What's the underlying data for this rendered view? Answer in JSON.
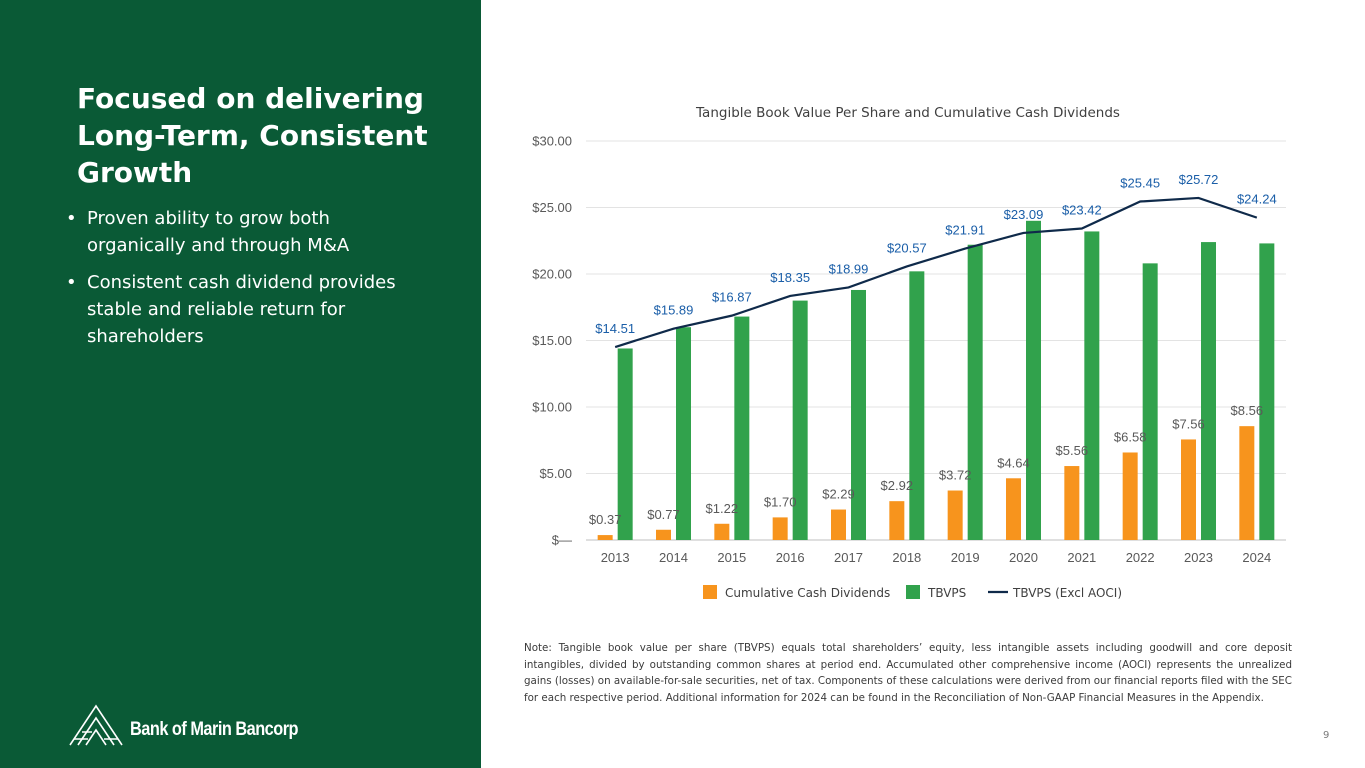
{
  "slide": {
    "title": "Focused on delivering Long-Term, Consistent Growth",
    "bullets": [
      "Proven ability to grow both organically and through M&A",
      "Consistent cash dividend provides stable and reliable return for shareholders"
    ],
    "bullet_symbol": "•",
    "logo_text": "Bank of Marin Bancorp",
    "note": "Note: Tangible book value per share (TBVPS) equals total shareholders’ equity, less intangible assets including goodwill and core deposit intangibles, divided by outstanding common shares at period end. Accumulated other comprehensive income (AOCI) represents the unrealized gains (losses) on available-for-sale securities, net of tax. Components of these calculations were derived from our financial reports filed with the SEC for each respective period. Additional information for 2024 can be found in the Reconciliation of Non-GAAP Financial Measures in the Appendix.",
    "page_number": "9"
  },
  "colors": {
    "panel": "#0a5a36",
    "dividends": "#f7941d",
    "tbvps": "#31a24c",
    "line": "#0f2a4a",
    "line_label": "#1a5ea8",
    "bar_label": "#595959",
    "axis_text": "#595959",
    "grid": "#e3e3e3"
  },
  "chart_data": {
    "type": "bar",
    "title": "Tangible Book Value Per Share and Cumulative Cash Dividends",
    "categories": [
      "2013",
      "2014",
      "2015",
      "2016",
      "2017",
      "2018",
      "2019",
      "2020",
      "2021",
      "2022",
      "2023",
      "2024"
    ],
    "series": [
      {
        "name": "Cumulative Cash Dividends",
        "type": "bar",
        "values": [
          0.37,
          0.77,
          1.22,
          1.7,
          2.29,
          2.92,
          3.72,
          4.64,
          5.56,
          6.58,
          7.56,
          8.56
        ],
        "labels": [
          "$0.37",
          "$0.77",
          "$1.22",
          "$1.70",
          "$2.29",
          "$2.92",
          "$3.72",
          "$4.64",
          "$5.56",
          "$6.58",
          "$7.56",
          "$8.56"
        ]
      },
      {
        "name": "TBVPS",
        "type": "bar",
        "values": [
          14.4,
          16.0,
          16.8,
          18.0,
          18.8,
          20.2,
          22.2,
          24.0,
          23.2,
          20.8,
          22.4,
          22.3
        ]
      },
      {
        "name": "TBVPS (Excl AOCI)",
        "type": "line",
        "values": [
          14.51,
          15.89,
          16.87,
          18.35,
          18.99,
          20.57,
          21.91,
          23.09,
          23.42,
          25.45,
          25.72,
          24.24
        ],
        "labels": [
          "$14.51",
          "$15.89",
          "$16.87",
          "$18.35",
          "$18.99",
          "$20.57",
          "$21.91",
          "$23.09",
          "$23.42",
          "$25.45",
          "$25.72",
          "$24.24"
        ]
      }
    ],
    "ylim": [
      0,
      30
    ],
    "yticks": [
      0,
      5,
      10,
      15,
      20,
      25,
      30
    ],
    "ytick_labels": [
      "$—",
      "$5.00",
      "$10.00",
      "$15.00",
      "$20.00",
      "$25.00",
      "$30.00"
    ],
    "grid": true,
    "legend_position": "bottom"
  }
}
